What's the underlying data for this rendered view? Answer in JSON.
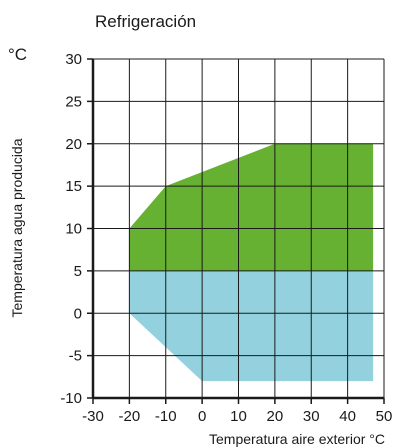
{
  "chart_data": {
    "type": "area",
    "title": "Refrigeración",
    "ylabel": "Temperatura agua producida",
    "yunit": "°C",
    "xlabel": "Temperatura aire exterior °C",
    "xlim": [
      -30,
      50
    ],
    "ylim": [
      -10,
      30
    ],
    "xticks": [
      -30,
      -20,
      -10,
      0,
      10,
      20,
      30,
      40,
      50
    ],
    "xtick_labels": [
      "-30",
      "-20",
      "-10",
      "0",
      "10",
      "20",
      "30",
      "40",
      "50"
    ],
    "yticks": [
      -10,
      -5,
      0,
      5,
      10,
      15,
      20,
      25,
      30
    ],
    "ytick_labels": [
      "-10",
      "-5",
      "0",
      "5",
      "10",
      "15",
      "20",
      "25",
      "30"
    ],
    "grid": true,
    "series": [
      {
        "color": "#66b032",
        "points": [
          [
            -20,
            5
          ],
          [
            -20,
            10
          ],
          [
            -10,
            15
          ],
          [
            20,
            20
          ],
          [
            47,
            20
          ],
          [
            47,
            5
          ]
        ]
      },
      {
        "color": "#93d1de",
        "points": [
          [
            -20,
            5
          ],
          [
            -20,
            0
          ],
          [
            0,
            -8
          ],
          [
            47,
            -8
          ],
          [
            47,
            5
          ]
        ]
      }
    ]
  }
}
